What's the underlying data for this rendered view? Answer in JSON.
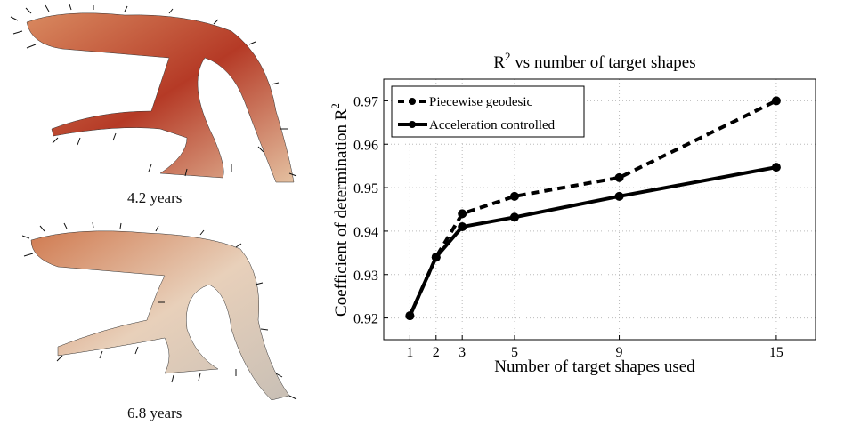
{
  "figure": {
    "left_panels": [
      {
        "caption": "4.2 years"
      },
      {
        "caption": "6.8 years"
      }
    ],
    "colors": {
      "shape_dark": "#b83a28",
      "shape_light": "#e8c4a8",
      "line": "#000000",
      "grid": "#bbbbbb"
    }
  },
  "chart_data": {
    "type": "line",
    "title": "R",
    "title_sup": "2",
    "title_rest": " vs number of target shapes",
    "xlabel": "Number of target shapes used",
    "ylabel": "Coefficient of determination R",
    "ylabel_sup": "2",
    "x": [
      1,
      2,
      3,
      5,
      9,
      15
    ],
    "xticks": [
      "1",
      "2",
      "3",
      "5",
      "9",
      "15"
    ],
    "yticks": [
      "0.92",
      "0.93",
      "0.94",
      "0.95",
      "0.96",
      "0.97"
    ],
    "ytick_values": [
      0.92,
      0.93,
      0.94,
      0.95,
      0.96,
      0.97
    ],
    "xlim": [
      0,
      16.5
    ],
    "ylim": [
      0.915,
      0.975
    ],
    "grid": true,
    "legend_position": "top-left",
    "series": [
      {
        "name": "Piecewise geodesic",
        "style": "dashed",
        "values": [
          0.9205,
          0.934,
          0.944,
          0.948,
          0.9523,
          0.97
        ]
      },
      {
        "name": "Acceleration controlled",
        "style": "solid",
        "values": [
          0.9205,
          0.934,
          0.941,
          0.9432,
          0.948,
          0.9547
        ]
      }
    ]
  }
}
